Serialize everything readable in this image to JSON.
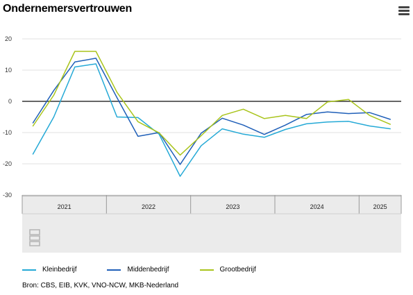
{
  "title": "Ondernemersvertrouwen",
  "source": "Bron: CBS, EIB, KVK, VNO-NCW, MKB-Nederland",
  "menu_icon": "hamburger-icon",
  "watermark_icon": "cbs-logo-icon",
  "colors": {
    "Kleinbedrijf": "#24a9d6",
    "Middenbedrijf": "#1f5fb8",
    "Grootbedrijf": "#a9c41b",
    "grid": "#e0e0e0",
    "zero_line": "#333333",
    "axis_band": "#ebebeb"
  },
  "chart_data": {
    "type": "line",
    "x": [
      "2021 Q1",
      "2021 Q2",
      "2021 Q3",
      "2021 Q4",
      "2022 Q1",
      "2022 Q2",
      "2022 Q3",
      "2022 Q4",
      "2023 Q1",
      "2023 Q2",
      "2023 Q3",
      "2023 Q4",
      "2024 Q1",
      "2024 Q2",
      "2024 Q3",
      "2024 Q4",
      "2025 Q1",
      "2025 Q2"
    ],
    "year_labels": [
      {
        "label": "2021",
        "start": 0,
        "end": 4
      },
      {
        "label": "2022",
        "start": 4,
        "end": 8
      },
      {
        "label": "2023",
        "start": 8,
        "end": 12
      },
      {
        "label": "2024",
        "start": 12,
        "end": 16
      },
      {
        "label": "2025",
        "start": 16,
        "end": 18
      }
    ],
    "series": [
      {
        "name": "Kleinbedrijf",
        "values": [
          -17,
          -5,
          11,
          12,
          -5,
          -5.2,
          -10.5,
          -24,
          -14.2,
          -8.8,
          -10.5,
          -11.5,
          -9,
          -7.2,
          -6.6,
          -6.4,
          -7.9,
          -8.8
        ]
      },
      {
        "name": "Middenbedrijf",
        "values": [
          -7,
          3.5,
          12.6,
          13.8,
          1.2,
          -11.2,
          -10,
          -20.2,
          -10.2,
          -5.4,
          -7.6,
          -10.6,
          -7.6,
          -4.2,
          -3.4,
          -3.9,
          -3.6,
          -5.8
        ]
      },
      {
        "name": "Grootbedrijf",
        "values": [
          -8,
          2,
          16,
          16,
          2.9,
          -6.5,
          -10.1,
          -17.2,
          -11,
          -4.5,
          -2.5,
          -5.5,
          -4.5,
          -5.5,
          -0.2,
          0.6,
          -4.5,
          -7.4
        ]
      }
    ],
    "yticks": [
      20,
      10,
      0,
      -10,
      -20,
      -30
    ],
    "ylim": [
      -30,
      20
    ],
    "grid": true,
    "legend_position": "bottom-left"
  }
}
